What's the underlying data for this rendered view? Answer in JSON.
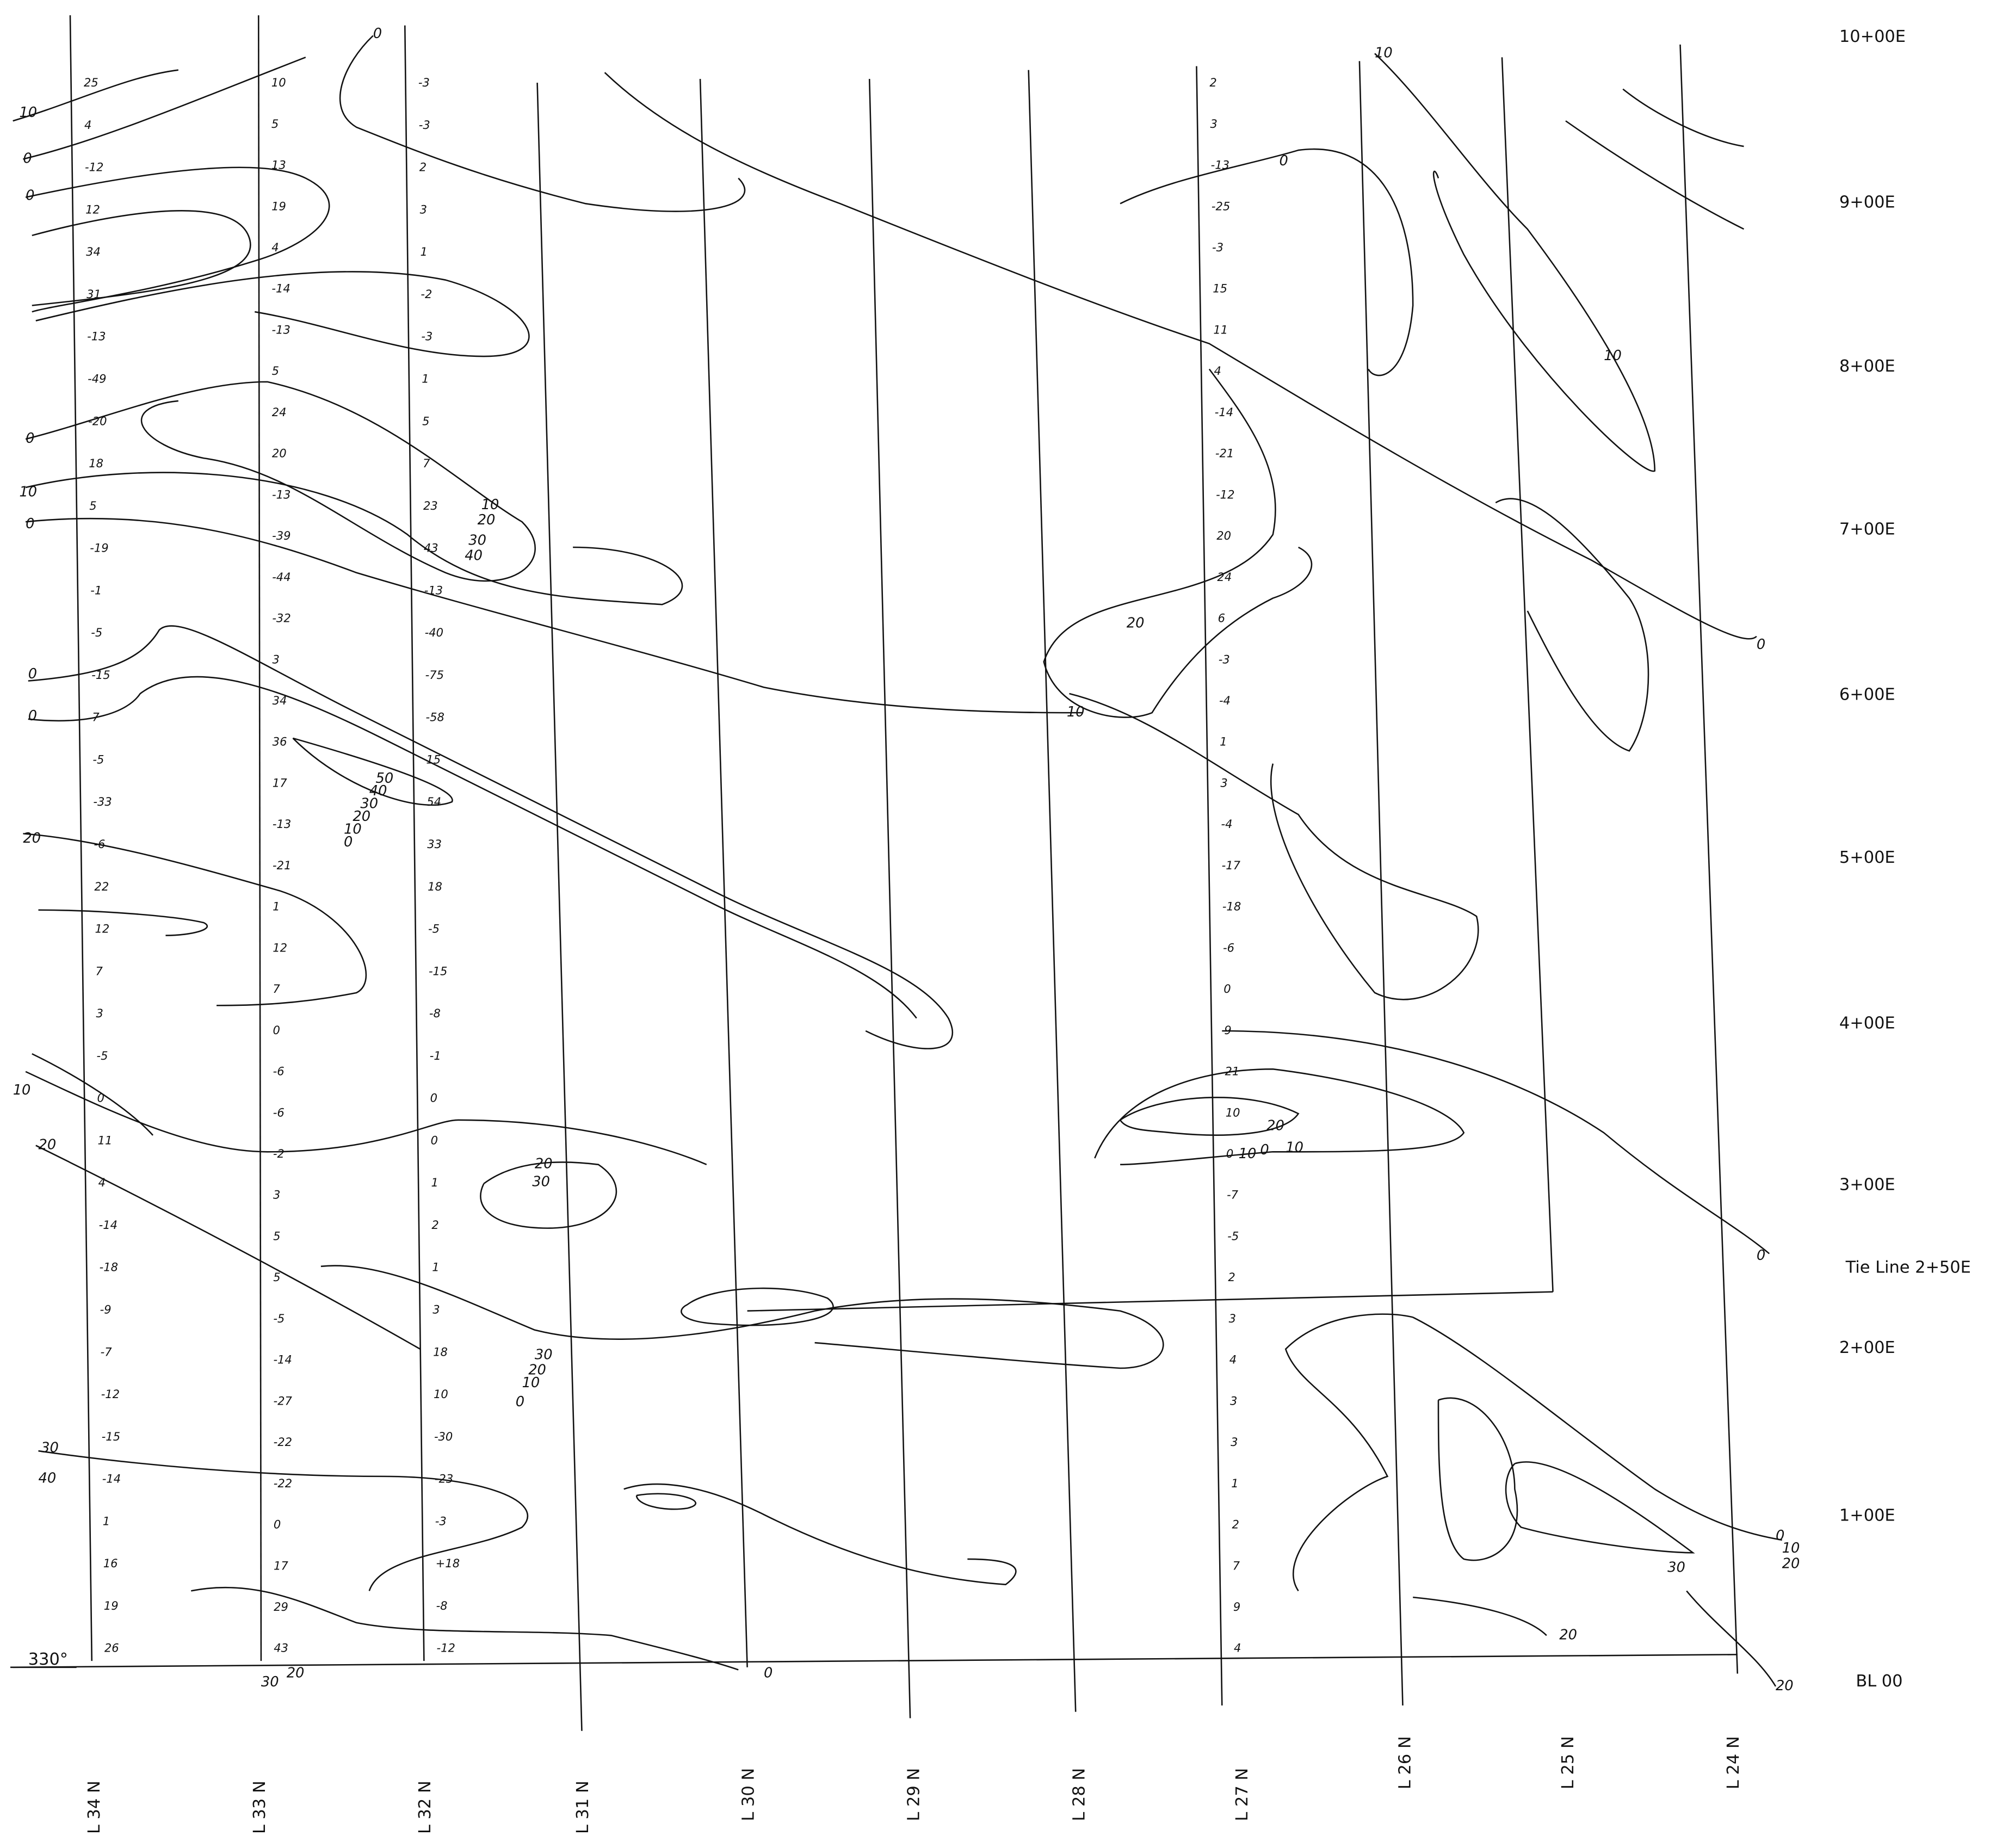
{
  "survey_lines": [
    {
      "label": "L 34 N",
      "readings": [
        "25",
        "4",
        "-12",
        "12",
        "34",
        "31",
        "-13",
        "-49",
        "-20",
        "18",
        "5",
        "-19",
        "-1",
        "-5",
        "-15",
        "7",
        "-5",
        "-33",
        "-6",
        "22",
        "12",
        "7",
        "3",
        "-5",
        "0",
        "11",
        "4",
        "-14",
        "-18",
        "-9",
        "-7",
        "-12",
        "-15",
        "-14",
        "1",
        "16",
        "19",
        "26"
      ]
    },
    {
      "label": "L 33 N",
      "readings": [
        "10",
        "5",
        "13",
        "19",
        "4",
        "-14",
        "-13",
        "5",
        "24",
        "20",
        "-13",
        "-39",
        "-44",
        "-32",
        "3",
        "34",
        "36",
        "17",
        "-13",
        "-21",
        "1",
        "12",
        "7",
        "0",
        "-6",
        "-6",
        "-2",
        "3",
        "5",
        "5",
        "-5",
        "-14",
        "-27",
        "-22",
        "-22",
        "0",
        "17",
        "29",
        "43"
      ]
    },
    {
      "label": "L 32 N",
      "readings": [
        "-3",
        "-3",
        "2",
        "3",
        "1",
        "-2",
        "-3",
        "1",
        "5",
        "7",
        "23",
        "43",
        "-13",
        "-40",
        "-75",
        "-58",
        "15",
        "54",
        "33",
        "18",
        "-5",
        "-15",
        "-8",
        "-1",
        "0",
        "0",
        "1",
        "2",
        "1",
        "3",
        "18",
        "10",
        "-30",
        "-23",
        "-3",
        "+18",
        "-8",
        "-12"
      ]
    },
    {
      "label": "L 31 N",
      "readings": []
    },
    {
      "label": "L 30 N",
      "readings": []
    },
    {
      "label": "L 29 N",
      "readings": []
    },
    {
      "label": "L 28 N",
      "readings": []
    },
    {
      "label": "L 27 N",
      "readings": [
        "2",
        "3",
        "-13",
        "-25",
        "-3",
        "15",
        "11",
        "4",
        "-14",
        "-21",
        "-12",
        "20",
        "24",
        "6",
        "-3",
        "-4",
        "1",
        "3",
        "-4",
        "-17",
        "-18",
        "-6",
        "0",
        "9",
        "21",
        "10",
        "0",
        "-7",
        "-5",
        "2",
        "3",
        "4",
        "3",
        "3",
        "1",
        "2",
        "7",
        "9",
        "4"
      ]
    },
    {
      "label": "L 26 N",
      "readings": []
    },
    {
      "label": "L 25 N",
      "readings": []
    },
    {
      "label": "L 24 N",
      "readings": []
    }
  ],
  "stations": [
    "10+00E",
    "9+00E",
    "8+00E",
    "7+00E",
    "6+00E",
    "5+00E",
    "4+00E",
    "3+00E",
    "2+00E",
    "1+00E"
  ],
  "tie_line": "Tie Line 2+50E",
  "baseline": "BL 00",
  "bearing": "330°",
  "contour_labels": [
    "0",
    "10",
    "10",
    "0",
    "0",
    "0",
    "10",
    "0",
    "0",
    "0",
    "20",
    "10",
    "20",
    "30",
    "40",
    "50",
    "40",
    "30",
    "20",
    "10",
    "0",
    "30",
    "20",
    "10",
    "0",
    "0",
    "20",
    "30",
    "10",
    "20",
    "10",
    "20",
    "30",
    "20",
    "10",
    "0",
    "0",
    "20",
    "10",
    "0",
    "10",
    "20",
    "30",
    "40",
    "30",
    "20",
    "10",
    "0",
    "0",
    "20"
  ]
}
